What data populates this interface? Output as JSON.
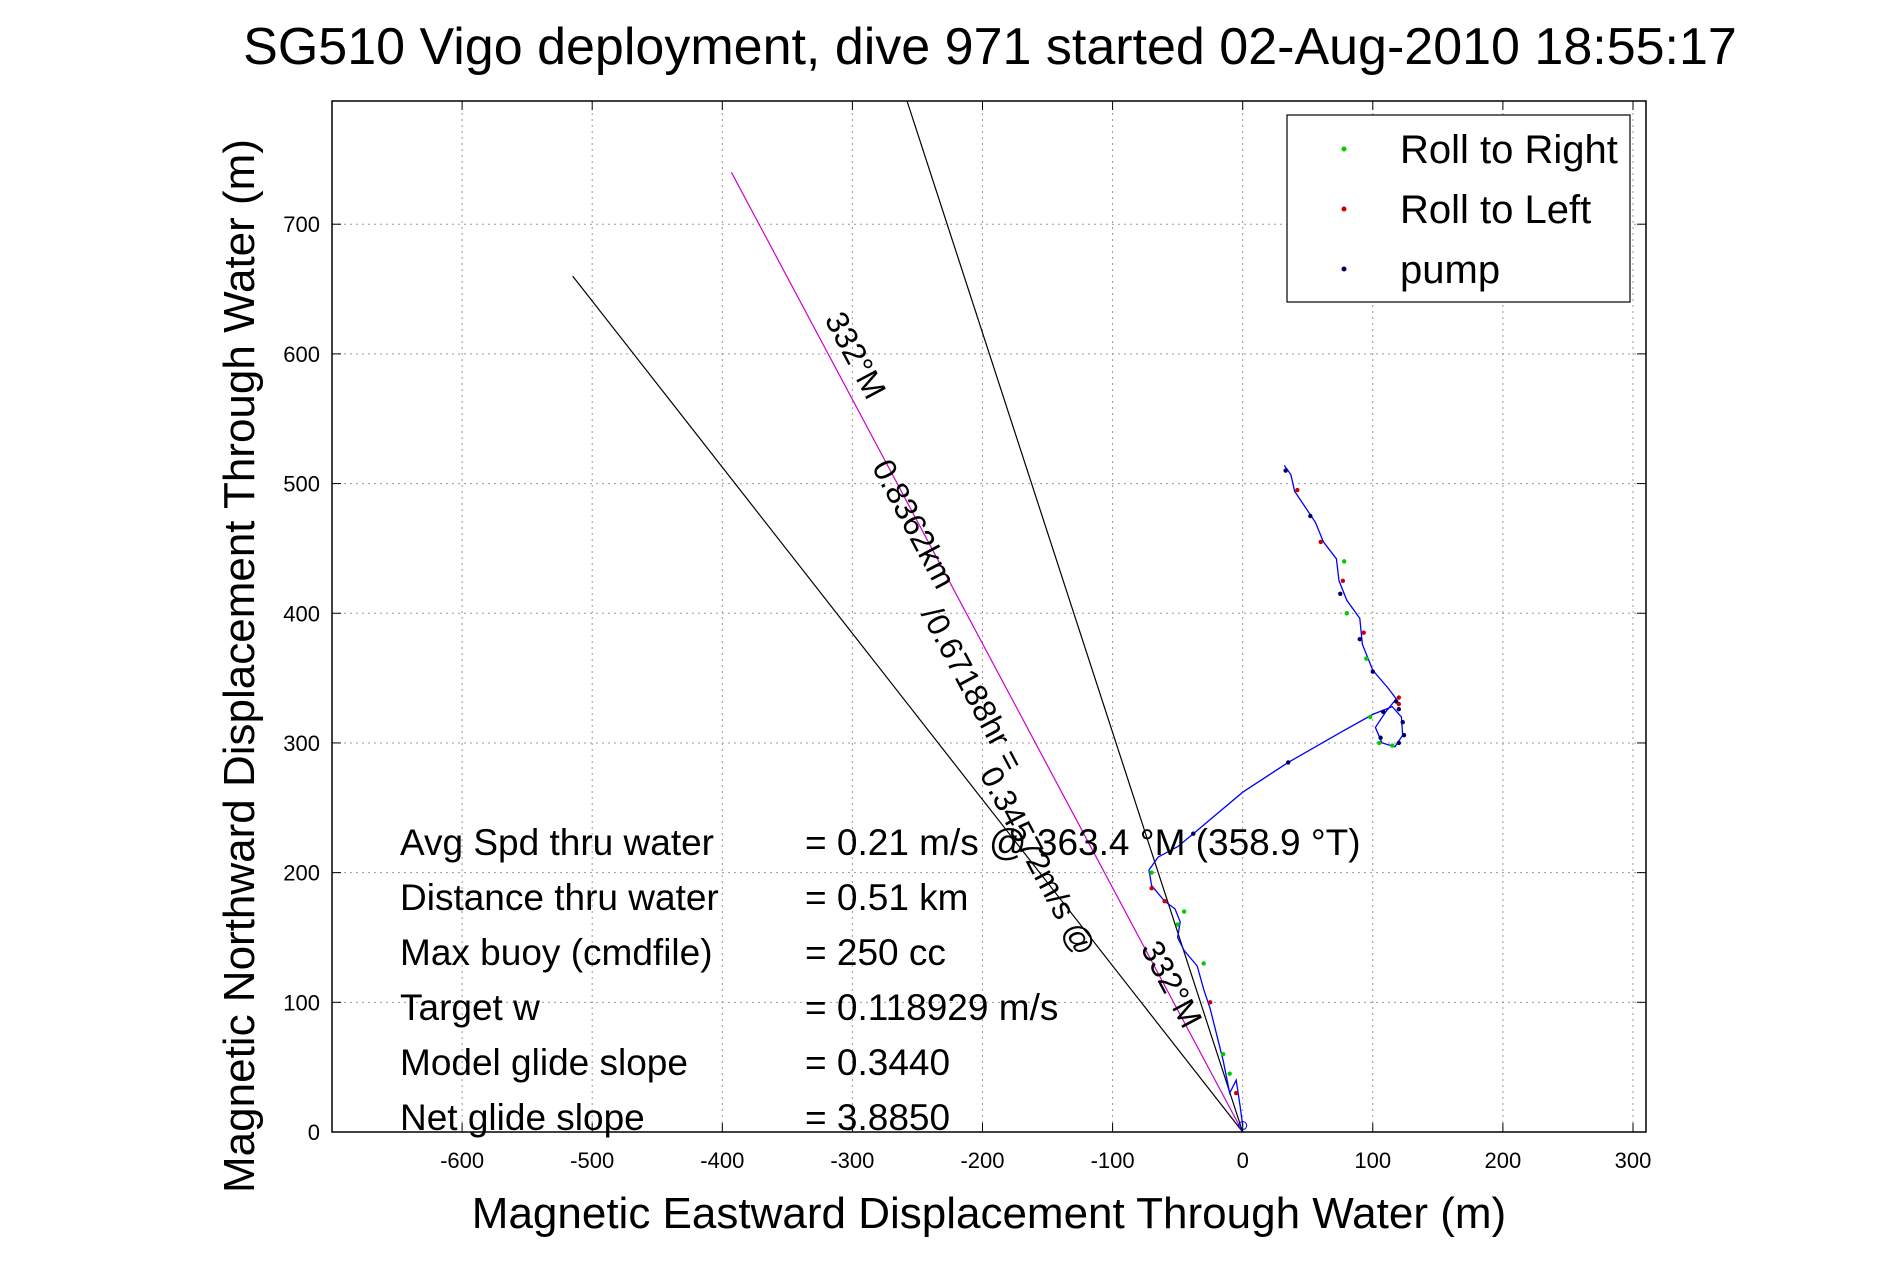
{
  "chart_data": {
    "type": "line",
    "title": "SG510 Vigo deployment, dive 971 started 02-Aug-2010 18:55:17",
    "xlabel": "Magnetic Eastward Displacement Through Water (m)",
    "ylabel": "Magnetic Northward Displacement Through Water (m)",
    "xlim": [
      -700,
      310
    ],
    "ylim": [
      0,
      795
    ],
    "xticks": [
      -600,
      -500,
      -400,
      -300,
      -200,
      -100,
      0,
      100,
      200,
      300
    ],
    "yticks": [
      0,
      100,
      200,
      300,
      400,
      500,
      600,
      700
    ],
    "grid": true,
    "legend": {
      "placement": "top-right",
      "entries": [
        {
          "label": "Roll to Right",
          "color": "#00cc00"
        },
        {
          "label": "Roll to Left",
          "color": "#cc0000"
        },
        {
          "label": "pump",
          "color": "#000066"
        }
      ]
    },
    "track": {
      "color": "#0000ff",
      "points": [
        [
          0,
          5
        ],
        [
          -2,
          20
        ],
        [
          -5,
          40
        ],
        [
          -10,
          30
        ],
        [
          -15,
          55
        ],
        [
          -20,
          75
        ],
        [
          -25,
          95
        ],
        [
          -30,
          110
        ],
        [
          -35,
          128
        ],
        [
          -45,
          140
        ],
        [
          -50,
          150
        ],
        [
          -48,
          162
        ],
        [
          -52,
          172
        ],
        [
          -60,
          178
        ],
        [
          -70,
          190
        ],
        [
          -72,
          202
        ],
        [
          -65,
          212
        ],
        [
          -50,
          220
        ],
        [
          -38,
          230
        ],
        [
          0,
          262
        ],
        [
          35,
          285
        ],
        [
          75,
          308
        ],
        [
          100,
          322
        ],
        [
          115,
          328
        ],
        [
          122,
          320
        ],
        [
          123,
          306
        ],
        [
          117,
          297
        ],
        [
          107,
          300
        ],
        [
          102,
          312
        ],
        [
          110,
          324
        ],
        [
          118,
          334
        ],
        [
          112,
          342
        ],
        [
          100,
          356
        ],
        [
          92,
          376
        ],
        [
          90,
          396
        ],
        [
          80,
          410
        ],
        [
          74,
          425
        ],
        [
          72,
          442
        ],
        [
          62,
          455
        ],
        [
          56,
          470
        ],
        [
          48,
          482
        ],
        [
          40,
          494
        ],
        [
          37,
          507
        ],
        [
          32,
          514
        ]
      ]
    },
    "markers": {
      "roll_right": [
        [
          -10,
          45
        ],
        [
          -15,
          60
        ],
        [
          -50,
          160
        ],
        [
          -45,
          170
        ],
        [
          -30,
          130
        ],
        [
          -70,
          200
        ],
        [
          105,
          300
        ],
        [
          115,
          298
        ],
        [
          98,
          320
        ],
        [
          95,
          365
        ],
        [
          80,
          400
        ],
        [
          78,
          440
        ]
      ],
      "roll_left": [
        [
          -5,
          30
        ],
        [
          -25,
          100
        ],
        [
          -60,
          178
        ],
        [
          -70,
          188
        ],
        [
          120,
          330
        ],
        [
          120,
          335
        ],
        [
          93,
          385
        ],
        [
          77,
          425
        ],
        [
          60,
          455
        ],
        [
          42,
          495
        ]
      ],
      "pump": [
        [
          -38,
          230
        ],
        [
          35,
          285
        ],
        [
          108,
          324
        ],
        [
          120,
          326
        ],
        [
          123,
          316
        ],
        [
          124,
          306
        ],
        [
          120,
          300
        ],
        [
          106,
          304
        ],
        [
          118,
          332
        ],
        [
          100,
          355
        ],
        [
          90,
          380
        ],
        [
          75,
          415
        ],
        [
          52,
          475
        ],
        [
          33,
          510
        ]
      ]
    },
    "reference_lines": [
      {
        "name": "heading-line-left",
        "from": [
          0,
          0
        ],
        "to": [
          -515,
          660
        ],
        "color": "#000000"
      },
      {
        "name": "heading-line-center",
        "from": [
          0,
          0
        ],
        "to": [
          -393,
          740
        ],
        "color": "#cc00cc"
      },
      {
        "name": "heading-line-right",
        "from": [
          0,
          0
        ],
        "to": [
          -258,
          795
        ],
        "color": "#000000"
      }
    ],
    "annotations": [
      {
        "text": "332°M",
        "x": -305,
        "y": 595,
        "angle_deg": 62
      },
      {
        "text": "0.8362km",
        "x": -260,
        "y": 465,
        "angle_deg": 62
      },
      {
        "text": "/0.67188hr =",
        "x": -215,
        "y": 338,
        "angle_deg": 62
      },
      {
        "text": "0.34572m/s @",
        "x": -165,
        "y": 205,
        "angle_deg": 62
      },
      {
        "text": "332°M",
        "x": -62,
        "y": 110,
        "angle_deg": 62
      }
    ],
    "stats": [
      {
        "label": "Avg Spd thru water",
        "value": "=  0.21 m/s @ 363.4 °M (358.9 °T)"
      },
      {
        "label": "Distance thru water",
        "value": "=  0.51 km"
      },
      {
        "label": "Max buoy (cmdfile)",
        "value": "= 250 cc"
      },
      {
        "label": "Target w",
        "value": "= 0.118929 m/s"
      },
      {
        "label": "Model glide slope",
        "value": "= 0.3440"
      },
      {
        "label": "Net glide slope",
        "value": "= 3.8850"
      }
    ]
  }
}
